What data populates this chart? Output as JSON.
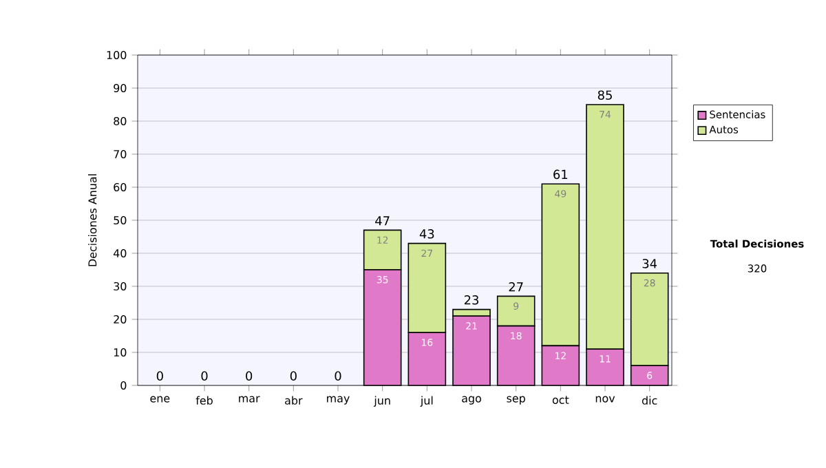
{
  "chart_data": {
    "type": "bar",
    "stacked": true,
    "ylabel": "Decisiones Anual",
    "categories": [
      "ene",
      "feb",
      "mar",
      "abr",
      "may",
      "jun",
      "jul",
      "ago",
      "sep",
      "oct",
      "nov",
      "dic"
    ],
    "series": [
      {
        "name": "Sentencias",
        "color": "#e07ac8",
        "values": [
          0,
          0,
          0,
          0,
          0,
          35,
          16,
          21,
          18,
          12,
          11,
          6
        ],
        "value_labels": [
          null,
          null,
          null,
          null,
          null,
          "35",
          "16",
          "21",
          "18",
          "12",
          "11",
          "6"
        ]
      },
      {
        "name": "Autos",
        "color": "#d2e894",
        "values": [
          0,
          0,
          0,
          0,
          0,
          12,
          27,
          2,
          9,
          49,
          74,
          28
        ],
        "value_labels": [
          null,
          null,
          null,
          null,
          null,
          "12",
          "27",
          null,
          "9",
          "49",
          "74",
          "28"
        ]
      }
    ],
    "totals": [
      "0",
      "0",
      "0",
      "0",
      "0",
      "47",
      "43",
      "23",
      "27",
      "61",
      "85",
      "34"
    ],
    "ylim": [
      0,
      100
    ],
    "yticks": [
      0,
      10,
      20,
      30,
      40,
      50,
      60,
      70,
      80,
      90,
      100
    ],
    "grid": "y",
    "legend": "right",
    "annotations": [
      "**Total Decisiones**",
      "320"
    ]
  }
}
